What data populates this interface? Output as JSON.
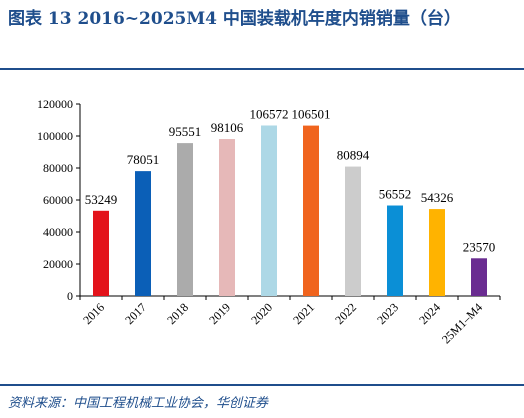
{
  "header": {
    "title": "图表 13   2016~2025M4 中国装载机年度内销销量（台）"
  },
  "footer": {
    "source": "资料来源：中国工程机械工业协会，华创证券"
  },
  "chart_data": {
    "type": "bar",
    "categories": [
      "2016",
      "2017",
      "2018",
      "2019",
      "2020",
      "2021",
      "2022",
      "2023",
      "2024",
      "25M1–M4"
    ],
    "values": [
      53249,
      78051,
      95551,
      98106,
      106572,
      106501,
      80894,
      56552,
      54326,
      23570
    ],
    "colors": [
      "#e3131b",
      "#0b5fb7",
      "#ababab",
      "#e6b8b8",
      "#add8e6",
      "#f0641e",
      "#cccccc",
      "#0b8fd6",
      "#ffb300",
      "#6a2c91"
    ],
    "ylim": [
      0,
      120000
    ],
    "yticks": [
      0,
      20000,
      40000,
      60000,
      80000,
      100000,
      120000
    ],
    "grid": false,
    "legend": "none"
  }
}
